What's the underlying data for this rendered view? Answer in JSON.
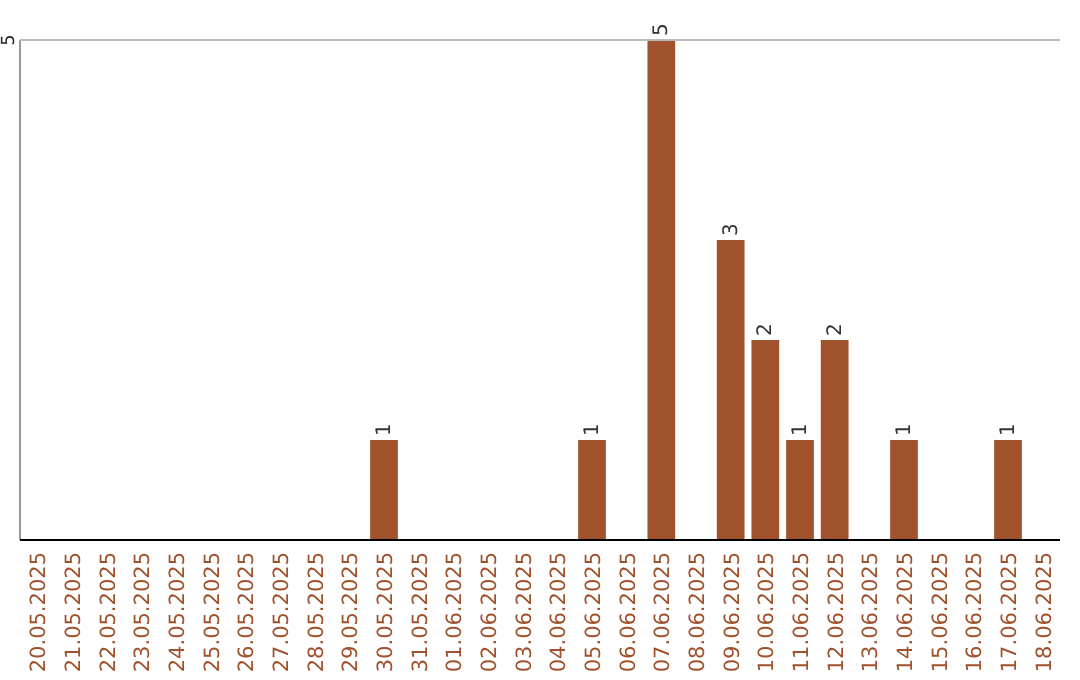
{
  "chart_data": {
    "type": "bar",
    "categories": [
      "20.05.2025",
      "21.05.2025",
      "22.05.2025",
      "23.05.2025",
      "24.05.2025",
      "25.05.2025",
      "26.05.2025",
      "27.05.2025",
      "28.05.2025",
      "29.05.2025",
      "30.05.2025",
      "31.05.2025",
      "01.06.2025",
      "02.06.2025",
      "03.06.2025",
      "04.06.2025",
      "05.06.2025",
      "06.06.2025",
      "07.06.2025",
      "08.06.2025",
      "09.06.2025",
      "10.06.2025",
      "11.06.2025",
      "12.06.2025",
      "13.06.2025",
      "14.06.2025",
      "15.06.2025",
      "16.06.2025",
      "17.06.2025",
      "18.06.2025"
    ],
    "values": [
      0,
      0,
      0,
      0,
      0,
      0,
      0,
      0,
      0,
      0,
      1,
      0,
      0,
      0,
      0,
      0,
      1,
      0,
      5,
      0,
      3,
      2,
      1,
      2,
      0,
      1,
      0,
      0,
      1,
      0
    ],
    "value_labels": [
      null,
      null,
      null,
      null,
      null,
      null,
      null,
      null,
      null,
      null,
      "1",
      null,
      null,
      null,
      null,
      null,
      "1",
      null,
      "5",
      null,
      "3",
      "2",
      "1",
      "2",
      null,
      "1",
      null,
      null,
      "1",
      null
    ],
    "color": "#a0522d",
    "ylim": [
      0,
      5
    ],
    "yticks": [
      5
    ]
  }
}
